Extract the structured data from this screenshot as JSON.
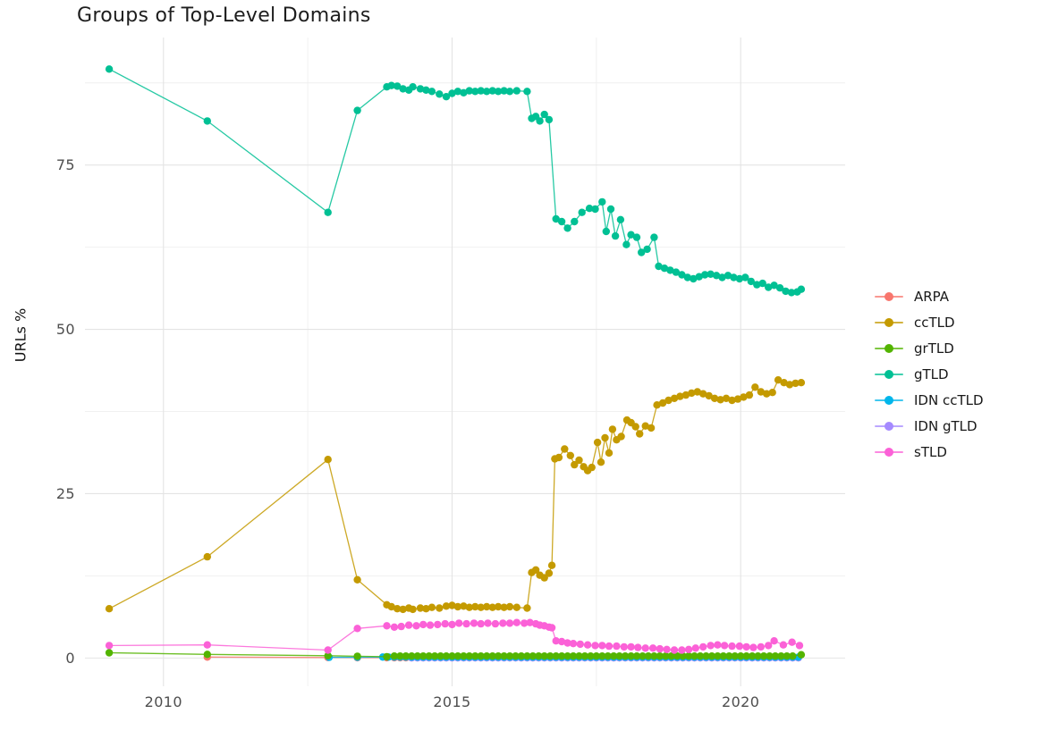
{
  "chart_data": {
    "type": "scatter",
    "title": "Groups of Top-Level Domains",
    "xlabel": "",
    "ylabel": "URLs %",
    "grid": "on",
    "background": "#ffffff",
    "major_grid_color": "#e4e4e4",
    "minor_grid_color": "#efefef",
    "x_axis": {
      "lim": [
        2008.64,
        2021.81
      ],
      "major_ticks": [
        2010,
        2015,
        2020
      ],
      "tick_labels": [
        "2010",
        "2015",
        "2020"
      ],
      "minor_ticks": [
        2012.5,
        2017.5
      ]
    },
    "y_axis": {
      "lim": [
        -4.3,
        94.4
      ],
      "major_ticks": [
        0,
        25,
        50,
        75
      ],
      "tick_labels": [
        "0",
        "25",
        "50",
        "75"
      ],
      "minor_ticks": [
        12.5,
        37.5,
        62.5,
        87.5
      ]
    },
    "legend": {
      "position": "right",
      "items": [
        {
          "label": "ARPA",
          "color": "#F8766D"
        },
        {
          "label": "ccTLD",
          "color": "#C49A00"
        },
        {
          "label": "grTLD",
          "color": "#53B400"
        },
        {
          "label": "gTLD",
          "color": "#00C094"
        },
        {
          "label": "IDN ccTLD",
          "color": "#00B6EB"
        },
        {
          "label": "IDN gTLD",
          "color": "#A58AFF"
        },
        {
          "label": "sTLD",
          "color": "#FB61D7"
        }
      ]
    },
    "series": [
      {
        "name": "ARPA",
        "color": "#F8766D",
        "points": [
          [
            2010.76,
            0.15
          ],
          [
            2012.85,
            0.08
          ],
          [
            2013.36,
            0.05
          ],
          [
            2013.87,
            0.05
          ]
        ],
        "runs": [
          {
            "from": 2014.0,
            "to": 2021.05,
            "step": 0.1,
            "y": 0.05
          }
        ]
      },
      {
        "name": "IDN gTLD",
        "color": "#A58AFF",
        "points": [],
        "runs": [
          {
            "from": 2014.3,
            "to": 2021.05,
            "step": 0.1,
            "y": 0.04
          }
        ]
      },
      {
        "name": "IDN ccTLD",
        "color": "#00B6EB",
        "points": [
          [
            2012.87,
            0.1
          ],
          [
            2013.36,
            0.12
          ]
        ],
        "runs": [
          {
            "from": 2013.8,
            "to": 2021.05,
            "step": 0.1,
            "y": 0.15
          }
        ]
      },
      {
        "name": "grTLD",
        "color": "#53B400",
        "points": [
          [
            2009.06,
            0.8
          ],
          [
            2010.76,
            0.55
          ],
          [
            2012.85,
            0.35
          ],
          [
            2013.36,
            0.27
          ],
          [
            2013.87,
            0.2
          ],
          [
            2021.05,
            0.5
          ]
        ],
        "runs": [
          {
            "from": 2014.0,
            "to": 2020.95,
            "step": 0.1,
            "y": 0.3
          }
        ]
      },
      {
        "name": "sTLD",
        "color": "#FB61D7",
        "points": [
          [
            2009.06,
            1.9
          ],
          [
            2010.76,
            2.0
          ],
          [
            2012.85,
            1.2
          ],
          [
            2013.36,
            4.5
          ],
          [
            2013.87,
            4.9
          ],
          [
            2014.0,
            4.7
          ],
          [
            2014.12,
            4.8
          ],
          [
            2014.25,
            5.0
          ],
          [
            2014.38,
            4.9
          ],
          [
            2014.5,
            5.1
          ],
          [
            2014.62,
            5.0
          ],
          [
            2014.75,
            5.1
          ],
          [
            2014.88,
            5.2
          ],
          [
            2015.0,
            5.1
          ],
          [
            2015.12,
            5.3
          ],
          [
            2015.25,
            5.2
          ],
          [
            2015.38,
            5.3
          ],
          [
            2015.5,
            5.2
          ],
          [
            2015.62,
            5.3
          ],
          [
            2015.75,
            5.2
          ],
          [
            2015.88,
            5.3
          ],
          [
            2016.0,
            5.3
          ],
          [
            2016.12,
            5.4
          ],
          [
            2016.25,
            5.3
          ],
          [
            2016.35,
            5.4
          ],
          [
            2016.45,
            5.2
          ],
          [
            2016.52,
            5.0
          ],
          [
            2016.6,
            4.9
          ],
          [
            2016.68,
            4.7
          ],
          [
            2016.73,
            4.6
          ],
          [
            2016.8,
            2.6
          ],
          [
            2016.9,
            2.5
          ],
          [
            2017.0,
            2.3
          ],
          [
            2017.1,
            2.2
          ],
          [
            2017.22,
            2.1
          ],
          [
            2017.35,
            2.0
          ],
          [
            2017.48,
            1.9
          ],
          [
            2017.6,
            1.9
          ],
          [
            2017.72,
            1.8
          ],
          [
            2017.85,
            1.8
          ],
          [
            2017.98,
            1.7
          ],
          [
            2018.1,
            1.7
          ],
          [
            2018.22,
            1.6
          ],
          [
            2018.35,
            1.5
          ],
          [
            2018.48,
            1.5
          ],
          [
            2018.6,
            1.4
          ],
          [
            2018.72,
            1.3
          ],
          [
            2018.85,
            1.2
          ],
          [
            2018.98,
            1.2
          ],
          [
            2019.1,
            1.3
          ],
          [
            2019.22,
            1.5
          ],
          [
            2019.35,
            1.7
          ],
          [
            2019.48,
            1.9
          ],
          [
            2019.6,
            2.0
          ],
          [
            2019.72,
            1.9
          ],
          [
            2019.85,
            1.8
          ],
          [
            2019.98,
            1.8
          ],
          [
            2020.1,
            1.7
          ],
          [
            2020.22,
            1.6
          ],
          [
            2020.35,
            1.7
          ],
          [
            2020.48,
            1.9
          ],
          [
            2020.58,
            2.6
          ],
          [
            2020.74,
            2.0
          ],
          [
            2020.89,
            2.4
          ],
          [
            2021.02,
            1.9
          ]
        ]
      },
      {
        "name": "ccTLD",
        "color": "#C49A00",
        "points": [
          [
            2009.06,
            7.5
          ],
          [
            2010.76,
            15.4
          ],
          [
            2012.85,
            30.2
          ],
          [
            2013.36,
            11.9
          ],
          [
            2013.87,
            8.1
          ],
          [
            2013.95,
            7.8
          ],
          [
            2014.05,
            7.5
          ],
          [
            2014.15,
            7.4
          ],
          [
            2014.25,
            7.6
          ],
          [
            2014.32,
            7.4
          ],
          [
            2014.45,
            7.6
          ],
          [
            2014.55,
            7.5
          ],
          [
            2014.65,
            7.7
          ],
          [
            2014.78,
            7.6
          ],
          [
            2014.9,
            7.9
          ],
          [
            2015.0,
            8.0
          ],
          [
            2015.1,
            7.8
          ],
          [
            2015.2,
            7.9
          ],
          [
            2015.3,
            7.7
          ],
          [
            2015.4,
            7.8
          ],
          [
            2015.5,
            7.7
          ],
          [
            2015.6,
            7.8
          ],
          [
            2015.7,
            7.7
          ],
          [
            2015.8,
            7.8
          ],
          [
            2015.9,
            7.7
          ],
          [
            2016.0,
            7.8
          ],
          [
            2016.12,
            7.7
          ],
          [
            2016.3,
            7.6
          ],
          [
            2016.38,
            13.0
          ],
          [
            2016.45,
            13.4
          ],
          [
            2016.52,
            12.6
          ],
          [
            2016.6,
            12.2
          ],
          [
            2016.68,
            12.9
          ],
          [
            2016.73,
            14.1
          ],
          [
            2016.78,
            30.3
          ],
          [
            2016.85,
            30.5
          ],
          [
            2016.95,
            31.8
          ],
          [
            2017.05,
            30.8
          ],
          [
            2017.12,
            29.4
          ],
          [
            2017.2,
            30.1
          ],
          [
            2017.28,
            29.1
          ],
          [
            2017.35,
            28.5
          ],
          [
            2017.42,
            29.0
          ],
          [
            2017.52,
            32.8
          ],
          [
            2017.58,
            29.8
          ],
          [
            2017.65,
            33.5
          ],
          [
            2017.72,
            31.2
          ],
          [
            2017.78,
            34.8
          ],
          [
            2017.85,
            33.2
          ],
          [
            2017.93,
            33.7
          ],
          [
            2018.03,
            36.2
          ],
          [
            2018.1,
            35.8
          ],
          [
            2018.18,
            35.2
          ],
          [
            2018.25,
            34.1
          ],
          [
            2018.35,
            35.3
          ],
          [
            2018.45,
            35.0
          ],
          [
            2018.55,
            38.5
          ],
          [
            2018.65,
            38.8
          ],
          [
            2018.75,
            39.2
          ],
          [
            2018.85,
            39.5
          ],
          [
            2018.95,
            39.8
          ],
          [
            2019.05,
            40.0
          ],
          [
            2019.15,
            40.3
          ],
          [
            2019.25,
            40.5
          ],
          [
            2019.35,
            40.2
          ],
          [
            2019.45,
            39.9
          ],
          [
            2019.55,
            39.5
          ],
          [
            2019.65,
            39.3
          ],
          [
            2019.75,
            39.5
          ],
          [
            2019.85,
            39.2
          ],
          [
            2019.95,
            39.4
          ],
          [
            2020.05,
            39.7
          ],
          [
            2020.15,
            40.0
          ],
          [
            2020.25,
            41.2
          ],
          [
            2020.35,
            40.5
          ],
          [
            2020.45,
            40.2
          ],
          [
            2020.55,
            40.4
          ],
          [
            2020.65,
            42.3
          ],
          [
            2020.75,
            41.9
          ],
          [
            2020.85,
            41.6
          ],
          [
            2020.95,
            41.8
          ],
          [
            2021.05,
            41.9
          ]
        ]
      },
      {
        "name": "gTLD",
        "color": "#00C094",
        "points": [
          [
            2009.06,
            89.6
          ],
          [
            2010.76,
            81.7
          ],
          [
            2012.85,
            67.8
          ],
          [
            2013.36,
            83.3
          ],
          [
            2013.87,
            86.9
          ],
          [
            2013.95,
            87.1
          ],
          [
            2014.05,
            87.0
          ],
          [
            2014.15,
            86.6
          ],
          [
            2014.25,
            86.4
          ],
          [
            2014.32,
            86.9
          ],
          [
            2014.45,
            86.6
          ],
          [
            2014.55,
            86.4
          ],
          [
            2014.65,
            86.2
          ],
          [
            2014.78,
            85.8
          ],
          [
            2014.9,
            85.4
          ],
          [
            2015.0,
            85.9
          ],
          [
            2015.1,
            86.2
          ],
          [
            2015.2,
            86.0
          ],
          [
            2015.3,
            86.3
          ],
          [
            2015.4,
            86.2
          ],
          [
            2015.5,
            86.3
          ],
          [
            2015.6,
            86.2
          ],
          [
            2015.7,
            86.3
          ],
          [
            2015.8,
            86.2
          ],
          [
            2015.9,
            86.3
          ],
          [
            2016.0,
            86.2
          ],
          [
            2016.12,
            86.3
          ],
          [
            2016.3,
            86.2
          ],
          [
            2016.38,
            82.1
          ],
          [
            2016.45,
            82.4
          ],
          [
            2016.52,
            81.7
          ],
          [
            2016.6,
            82.7
          ],
          [
            2016.68,
            81.9
          ],
          [
            2016.8,
            66.8
          ],
          [
            2016.9,
            66.4
          ],
          [
            2017.0,
            65.4
          ],
          [
            2017.12,
            66.4
          ],
          [
            2017.25,
            67.8
          ],
          [
            2017.38,
            68.4
          ],
          [
            2017.48,
            68.3
          ],
          [
            2017.6,
            69.4
          ],
          [
            2017.67,
            64.9
          ],
          [
            2017.75,
            68.3
          ],
          [
            2017.83,
            64.2
          ],
          [
            2017.92,
            66.7
          ],
          [
            2018.02,
            62.9
          ],
          [
            2018.1,
            64.4
          ],
          [
            2018.2,
            64.0
          ],
          [
            2018.28,
            61.7
          ],
          [
            2018.38,
            62.2
          ],
          [
            2018.5,
            64.0
          ],
          [
            2018.58,
            59.6
          ],
          [
            2018.68,
            59.3
          ],
          [
            2018.78,
            59.0
          ],
          [
            2018.88,
            58.7
          ],
          [
            2018.98,
            58.3
          ],
          [
            2019.08,
            57.9
          ],
          [
            2019.18,
            57.7
          ],
          [
            2019.28,
            58.0
          ],
          [
            2019.38,
            58.3
          ],
          [
            2019.48,
            58.4
          ],
          [
            2019.58,
            58.2
          ],
          [
            2019.68,
            57.9
          ],
          [
            2019.78,
            58.2
          ],
          [
            2019.88,
            57.9
          ],
          [
            2019.98,
            57.7
          ],
          [
            2020.08,
            57.9
          ],
          [
            2020.18,
            57.3
          ],
          [
            2020.28,
            56.8
          ],
          [
            2020.38,
            57.0
          ],
          [
            2020.48,
            56.4
          ],
          [
            2020.58,
            56.7
          ],
          [
            2020.68,
            56.3
          ],
          [
            2020.78,
            55.8
          ],
          [
            2020.88,
            55.6
          ],
          [
            2020.98,
            55.7
          ],
          [
            2021.05,
            56.1
          ]
        ]
      }
    ]
  }
}
